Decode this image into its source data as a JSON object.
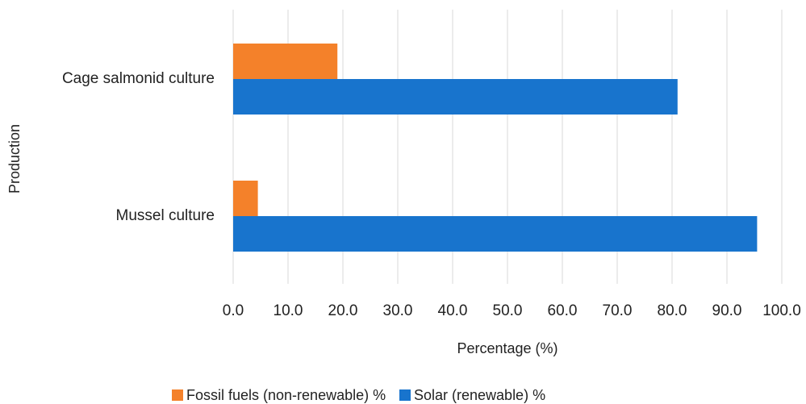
{
  "chart_data": {
    "type": "bar",
    "orientation": "horizontal",
    "title": "",
    "xlabel": "Percentage (%)",
    "ylabel": "Production",
    "xlim": [
      0,
      100
    ],
    "xticks": [
      "0.0",
      "10.0",
      "20.0",
      "30.0",
      "40.0",
      "50.0",
      "60.0",
      "70.0",
      "80.0",
      "90.0",
      "100.0"
    ],
    "categories": [
      "Cage salmonid culture",
      "Mussel culture"
    ],
    "series": [
      {
        "name": "Fossil fuels (non-renewable) %",
        "color": "#F4812A",
        "values": [
          19,
          4.5
        ]
      },
      {
        "name": "Solar (renewable) %",
        "color": "#1874CD",
        "values": [
          81,
          95.5
        ]
      }
    ],
    "grid": "vertical",
    "legend": "bottom"
  }
}
